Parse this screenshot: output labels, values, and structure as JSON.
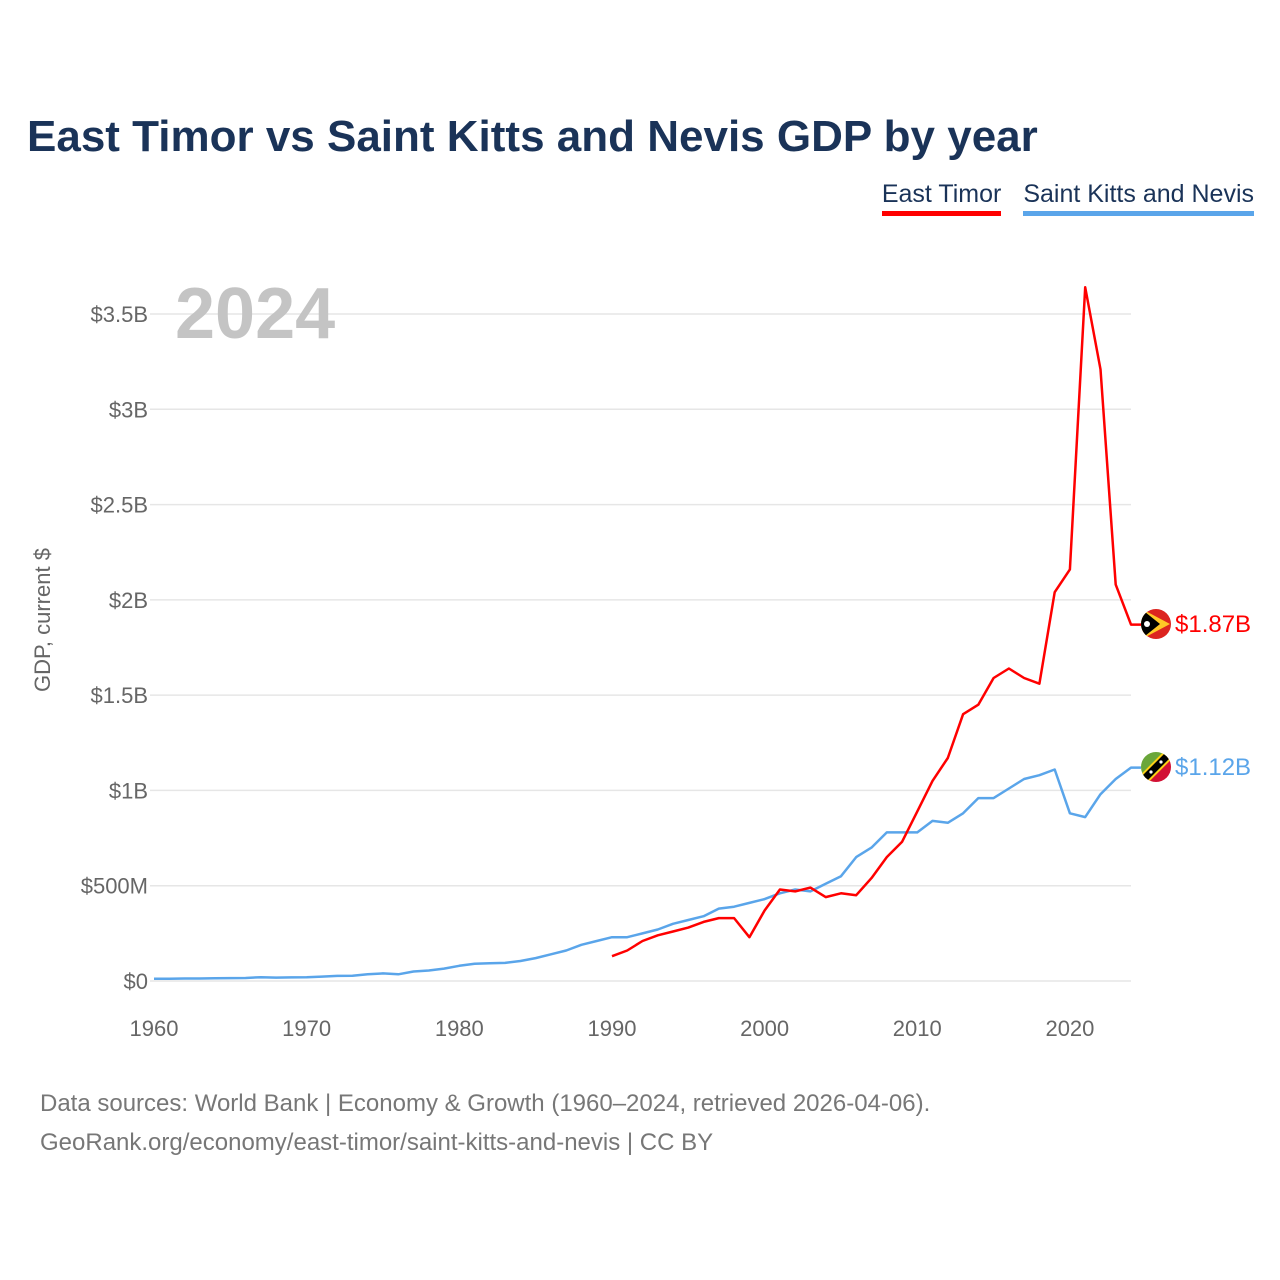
{
  "title": "East Timor vs Saint Kitts and Nevis GDP by year",
  "footer": {
    "line1": "Data sources: World Bank | Economy & Growth (1960–2024, retrieved 2026-04-06).",
    "line2": "GeoRank.org/economy/east-timor/saint-kitts-and-nevis | CC BY"
  },
  "chart_data": {
    "type": "line",
    "title": "East Timor vs Saint Kitts and Nevis GDP by year",
    "xlabel": "",
    "ylabel": "GDP, current $",
    "year_label": "2024",
    "xlim": [
      1960,
      2024
    ],
    "ylim": [
      0,
      3.5
    ],
    "y_unit": "billion USD",
    "grid": true,
    "legend_position": "top-right",
    "x_ticks": [
      1960,
      1970,
      1980,
      1990,
      2000,
      2010,
      2020
    ],
    "x_tick_labels": [
      "1960",
      "1970",
      "1980",
      "1990",
      "2000",
      "2010",
      "2020"
    ],
    "y_ticks": [
      0,
      0.5,
      1,
      1.5,
      2,
      2.5,
      3,
      3.5
    ],
    "y_tick_labels": [
      "$0",
      "$500M",
      "$1B",
      "$1.5B",
      "$2B",
      "$2.5B",
      "$3B",
      "$3.5B"
    ],
    "series": [
      {
        "name": "East Timor",
        "color": "#ff0000",
        "end_label": "$1.87B",
        "flag": "east-timor-flag",
        "start_year": 1990,
        "values": [
          0.13,
          0.16,
          0.21,
          0.24,
          0.26,
          0.28,
          0.31,
          0.33,
          0.33,
          0.23,
          0.37,
          0.48,
          0.47,
          0.49,
          0.44,
          0.46,
          0.45,
          0.54,
          0.65,
          0.73,
          0.89,
          1.05,
          1.17,
          1.4,
          1.45,
          1.59,
          1.64,
          1.59,
          1.56,
          2.04,
          2.16,
          3.64,
          3.21,
          2.08,
          1.87
        ]
      },
      {
        "name": "Saint Kitts and Nevis",
        "color": "#5aa5ea",
        "end_label": "$1.12B",
        "flag": "saint-kitts-and-nevis-flag",
        "start_year": 1960,
        "values": [
          0.012,
          0.012,
          0.013,
          0.013,
          0.014,
          0.015,
          0.016,
          0.02,
          0.018,
          0.019,
          0.02,
          0.023,
          0.027,
          0.028,
          0.035,
          0.04,
          0.035,
          0.05,
          0.055,
          0.065,
          0.08,
          0.09,
          0.093,
          0.095,
          0.105,
          0.12,
          0.14,
          0.16,
          0.19,
          0.21,
          0.23,
          0.23,
          0.25,
          0.27,
          0.3,
          0.32,
          0.34,
          0.38,
          0.39,
          0.41,
          0.43,
          0.46,
          0.48,
          0.47,
          0.51,
          0.55,
          0.65,
          0.7,
          0.78,
          0.78,
          0.78,
          0.84,
          0.83,
          0.88,
          0.96,
          0.96,
          1.01,
          1.06,
          1.08,
          1.11,
          0.88,
          0.86,
          0.98,
          1.06,
          1.12
        ]
      }
    ]
  }
}
